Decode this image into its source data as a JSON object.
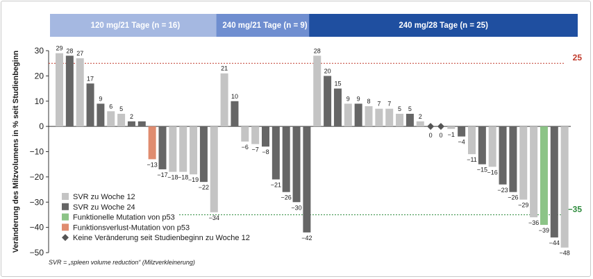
{
  "chart_data": {
    "type": "bar",
    "ylabel": "Veränderung des Milzvolumens in % seit Studienbeginn",
    "ylim": [
      -50,
      30
    ],
    "yticks": [
      30,
      20,
      10,
      0,
      -10,
      -20,
      -30,
      -40,
      -50
    ],
    "grid": false,
    "legend_position": "bottom-left",
    "groups": [
      {
        "label": "120 mg/21 Tage (n = 16)",
        "color": "#a5b8e1",
        "start": 0,
        "end": 15
      },
      {
        "label": "240 mg/21 Tage (n = 9)",
        "color": "#6f8ed0",
        "start": 16,
        "end": 24
      },
      {
        "label": "240 mg/28 Tage (n = 25)",
        "color": "#1f4fa0",
        "start": 25,
        "end": 49
      }
    ],
    "series": [
      {
        "name": "SVR zu Woche 12",
        "color": "#c4c4c4"
      },
      {
        "name": "SVR zu Woche 24",
        "color": "#666666"
      },
      {
        "name": "Funktionelle Mutation von p53",
        "color": "#8cc487"
      },
      {
        "name": "Funktionsverlust-Mutation von p53",
        "color": "#e08c6f"
      },
      {
        "name": "Keine Veränderung seit Studienbeginn zu Woche 12",
        "color": "#555555",
        "marker": "diamond"
      }
    ],
    "bars": [
      {
        "label": "29",
        "values": [
          29,
          null
        ]
      },
      {
        "label": "28",
        "values": [
          null,
          28
        ]
      },
      {
        "label": "27",
        "values": [
          27,
          null
        ]
      },
      {
        "label": "17",
        "values": [
          null,
          17
        ]
      },
      {
        "label": "9",
        "values": [
          null,
          9
        ]
      },
      {
        "label": "6",
        "values": [
          6,
          null
        ]
      },
      {
        "label": "5",
        "values": [
          5,
          null
        ]
      },
      {
        "label": "2",
        "values": [
          null,
          2
        ]
      },
      {
        "label": "",
        "values": [
          null,
          2
        ]
      },
      {
        "label": "−13",
        "values": [
          null,
          -13
        ],
        "series_override": 3
      },
      {
        "label": "−17",
        "values": [
          null,
          -17
        ]
      },
      {
        "label": "−18",
        "values": [
          -18,
          null
        ]
      },
      {
        "label": "−18",
        "values": [
          -18,
          null
        ]
      },
      {
        "label": "−19",
        "values": [
          -19,
          null
        ]
      },
      {
        "label": "−22",
        "values": [
          null,
          -22
        ]
      },
      {
        "label": "−34",
        "values": [
          -34,
          null
        ]
      },
      {
        "label": "21",
        "values": [
          21,
          null
        ]
      },
      {
        "label": "10",
        "values": [
          null,
          10
        ]
      },
      {
        "label": "−6",
        "values": [
          -6,
          null
        ]
      },
      {
        "label": "−7",
        "values": [
          -7,
          null
        ]
      },
      {
        "label": "−8",
        "values": [
          null,
          -8
        ]
      },
      {
        "label": "−21",
        "values": [
          null,
          -21
        ]
      },
      {
        "label": "−26",
        "values": [
          null,
          -26
        ]
      },
      {
        "label": "−30",
        "values": [
          null,
          -30
        ]
      },
      {
        "label": "−42",
        "values": [
          null,
          -42
        ]
      },
      {
        "label": "28",
        "values": [
          28,
          null
        ]
      },
      {
        "label": "20",
        "values": [
          null,
          20
        ]
      },
      {
        "label": "15",
        "values": [
          null,
          15
        ]
      },
      {
        "label": "9",
        "values": [
          9,
          null
        ]
      },
      {
        "label": "9",
        "values": [
          null,
          9
        ]
      },
      {
        "label": "8",
        "values": [
          8,
          null
        ]
      },
      {
        "label": "7",
        "values": [
          7,
          null
        ]
      },
      {
        "label": "7",
        "values": [
          7,
          null
        ]
      },
      {
        "label": "5",
        "values": [
          5,
          null
        ]
      },
      {
        "label": "5",
        "values": [
          null,
          5
        ]
      },
      {
        "label": "2",
        "values": [
          2,
          null
        ]
      },
      {
        "label": "0",
        "values": [
          0,
          null
        ],
        "marker": "diamond"
      },
      {
        "label": "0",
        "values": [
          0,
          null
        ],
        "marker": "diamond"
      },
      {
        "label": "−1",
        "values": [
          -1,
          null
        ]
      },
      {
        "label": "−4",
        "values": [
          null,
          -4
        ]
      },
      {
        "label": "−11",
        "values": [
          -11,
          null
        ]
      },
      {
        "label": "−15",
        "values": [
          null,
          -15
        ]
      },
      {
        "label": "−16",
        "values": [
          -16,
          null
        ]
      },
      {
        "label": "−23",
        "values": [
          null,
          -23
        ]
      },
      {
        "label": "−26",
        "values": [
          null,
          -26
        ]
      },
      {
        "label": "−29",
        "values": [
          -29,
          null
        ]
      },
      {
        "label": "−36",
        "values": [
          -36,
          null
        ]
      },
      {
        "label": "−39",
        "values": [
          null,
          -39
        ],
        "series_override": 2
      },
      {
        "label": "−44",
        "values": [
          null,
          -44
        ]
      },
      {
        "label": "−48",
        "values": [
          -48,
          null
        ]
      }
    ],
    "reference_lines": [
      {
        "value": 25,
        "label": "25",
        "color": "#c0392b"
      },
      {
        "value": -35,
        "label": "−35",
        "color": "#2e8b3d"
      }
    ],
    "footnote": "SVR = „spleen volume reduction“ (Milzverkleinerung)"
  }
}
